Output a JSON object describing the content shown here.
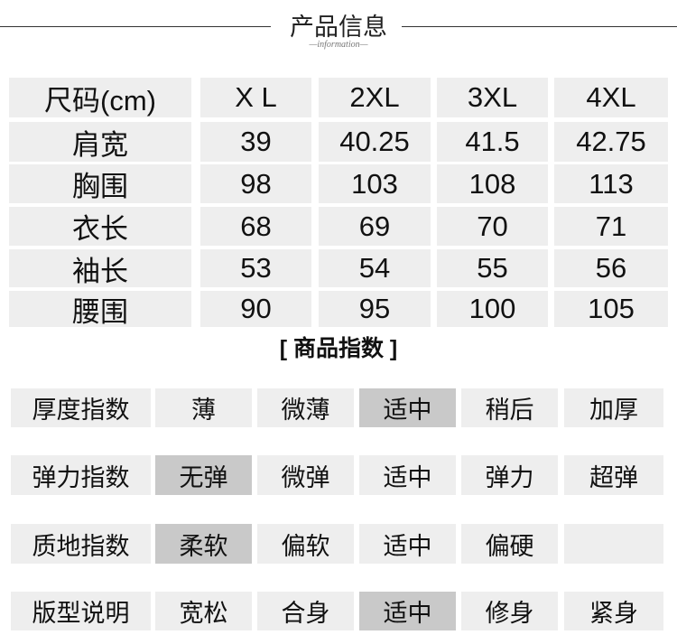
{
  "header": {
    "title": "产品信息",
    "subtitle": "—information—"
  },
  "size_table": {
    "columns": [
      "尺码(cm)",
      "X L",
      "2XL",
      "3XL",
      "4XL"
    ],
    "rows": [
      {
        "label": "肩宽",
        "values": [
          "39",
          "40.25",
          "41.5",
          "42.75"
        ]
      },
      {
        "label": "胸围",
        "values": [
          "98",
          "103",
          "108",
          "113"
        ]
      },
      {
        "label": "衣长",
        "values": [
          "68",
          "69",
          "70",
          "71"
        ]
      },
      {
        "label": "袖长",
        "values": [
          "53",
          "54",
          "55",
          "56"
        ]
      },
      {
        "label": "腰围",
        "values": [
          "90",
          "95",
          "100",
          "105"
        ]
      }
    ]
  },
  "index_section": {
    "title": "[ 商品指数 ]",
    "highlight_color": "#c9c9c9",
    "rows": [
      {
        "label": "厚度指数",
        "options": [
          "薄",
          "微薄",
          "适中",
          "稍后",
          "加厚"
        ],
        "selected": 2
      },
      {
        "label": "弹力指数",
        "options": [
          "无弹",
          "微弹",
          "适中",
          "弹力",
          "超弹"
        ],
        "selected": 0
      },
      {
        "label": "质地指数",
        "options": [
          "柔软",
          "偏软",
          "适中",
          "偏硬",
          ""
        ],
        "selected": 0
      },
      {
        "label": "版型说明",
        "options": [
          "宽松",
          "合身",
          "适中",
          "修身",
          "紧身"
        ],
        "selected": 2
      }
    ]
  }
}
